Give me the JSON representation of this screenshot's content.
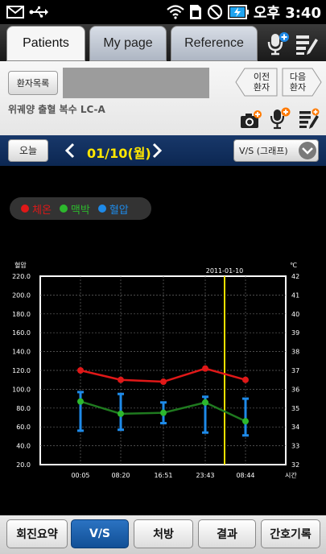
{
  "status_bar": {
    "time": "오후 3:40"
  },
  "tabs": [
    {
      "label": "Patients"
    },
    {
      "label": "My page"
    },
    {
      "label": "Reference"
    }
  ],
  "patient_panel": {
    "patient_list_button": "환자목록",
    "prev_patient_button": "이전\n환자",
    "next_patient_button": "다음\n환자",
    "diagnosis": "위궤양 출혈 복수 LC-A"
  },
  "date_nav": {
    "today_button": "오늘",
    "date": "01/10(월)",
    "view_select": "V/S (그래프)"
  },
  "legend": [
    {
      "label": "체온",
      "color": "#e01818"
    },
    {
      "label": "맥박",
      "color": "#2db82d"
    },
    {
      "label": "혈압",
      "color": "#1e8ae8"
    }
  ],
  "bottom_bar": {
    "buttons": [
      {
        "label": "회진요약"
      },
      {
        "label": "V/S"
      },
      {
        "label": "처방"
      },
      {
        "label": "결과"
      },
      {
        "label": "간호기록"
      }
    ]
  },
  "chart_data": {
    "type": "line",
    "left_axis_label": "혈압",
    "right_axis_label": "℃",
    "x_axis_label": "시간",
    "marker_label": "2011-01-10",
    "categories": [
      "00:05",
      "08:20",
      "16:51",
      "23:43",
      "08:44"
    ],
    "left_ylim": [
      20,
      220
    ],
    "left_ticks": [
      "220.0",
      "200.0",
      "180.0",
      "160.0",
      "140.0",
      "120.0",
      "100.0",
      "80.0",
      "60.0",
      "40.0",
      "20.0"
    ],
    "right_ylim": [
      32,
      42
    ],
    "right_ticks": [
      "42",
      "41",
      "40",
      "39",
      "38",
      "37",
      "36",
      "35",
      "34",
      "33",
      "32"
    ],
    "series": [
      {
        "name": "체온",
        "axis": "right",
        "color": "#e01818",
        "values": [
          37.0,
          36.5,
          36.4,
          37.1,
          36.5
        ]
      },
      {
        "name": "맥박",
        "axis": "left",
        "color": "#2db82d",
        "values": [
          87,
          74,
          75,
          86,
          66
        ]
      },
      {
        "name": "혈압",
        "axis": "left",
        "color": "#1e8ae8",
        "ranges": [
          [
            97,
            56
          ],
          [
            95,
            57
          ],
          [
            86,
            64
          ],
          [
            92,
            54
          ],
          [
            90,
            51
          ]
        ]
      }
    ],
    "grid": true
  }
}
